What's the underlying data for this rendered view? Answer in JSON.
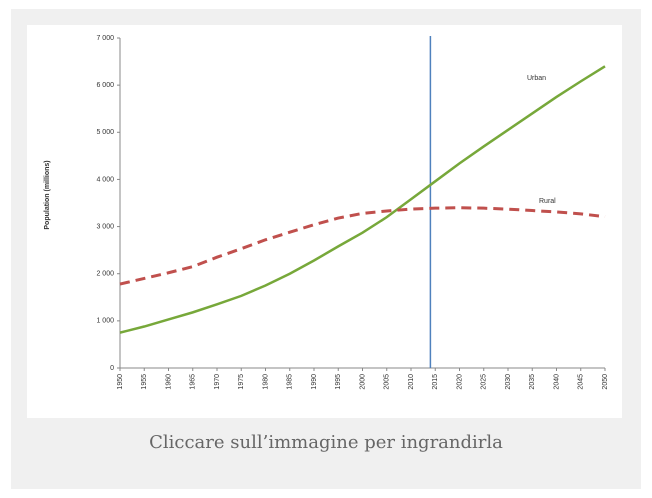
{
  "chart_data": {
    "type": "line",
    "y_label": "Population (millions)",
    "x": [
      1950,
      1955,
      1960,
      1965,
      1970,
      1975,
      1980,
      1985,
      1990,
      1995,
      2000,
      2005,
      2010,
      2015,
      2020,
      2025,
      2030,
      2035,
      2040,
      2045,
      2050
    ],
    "series": [
      {
        "name": "Urban",
        "color": "#77a83a",
        "dash": false,
        "values": [
          750,
          880,
          1030,
          1180,
          1350,
          1530,
          1750,
          2000,
          2280,
          2580,
          2870,
          3200,
          3580,
          3960,
          4340,
          4700,
          5050,
          5400,
          5750,
          6080,
          6400
        ]
      },
      {
        "name": "Rural",
        "color": "#c0504d",
        "dash": true,
        "values": [
          1780,
          1900,
          2020,
          2150,
          2350,
          2530,
          2720,
          2880,
          3040,
          3180,
          3280,
          3330,
          3370,
          3390,
          3400,
          3390,
          3370,
          3340,
          3310,
          3270,
          3210
        ]
      }
    ],
    "xlim": [
      1950,
      2050
    ],
    "xticks": [
      1950,
      1955,
      1960,
      1965,
      1970,
      1975,
      1980,
      1985,
      1990,
      1995,
      2000,
      2005,
      2010,
      2015,
      2020,
      2025,
      2030,
      2035,
      2040,
      2045,
      2050
    ],
    "ylim": [
      0,
      7000
    ],
    "yticks": [
      0,
      {
        "value": 1000,
        "label": "1 000"
      },
      {
        "value": 2000,
        "label": "2 000"
      },
      {
        "value": 3000,
        "label": "3 000"
      },
      {
        "value": 4000,
        "label": "4 000"
      },
      {
        "value": 5000,
        "label": "5 000"
      },
      {
        "value": 6000,
        "label": "6 000"
      },
      {
        "value": 7000,
        "label": "7 000"
      }
    ],
    "vline": 2014,
    "vline_color": "#4f81bd",
    "grid": false
  },
  "caption": "Cliccare sull’immagine per ingrandirla"
}
